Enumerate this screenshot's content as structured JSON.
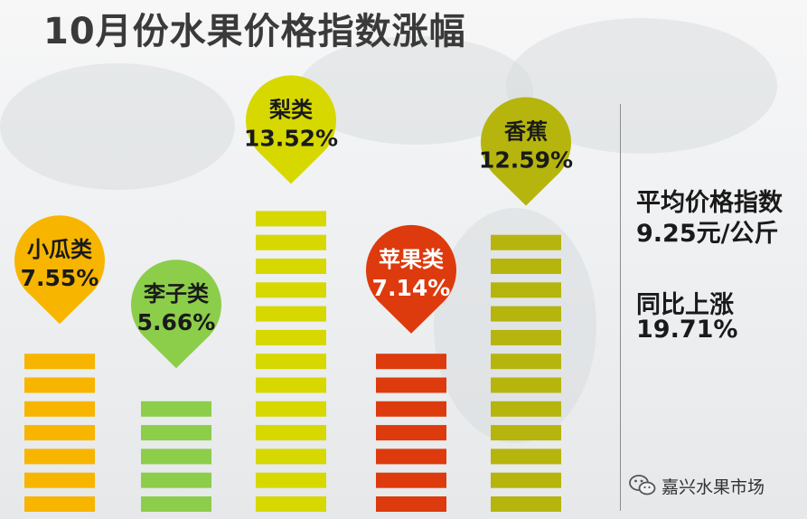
{
  "title": "10月份水果价格指数涨幅",
  "chart_data": {
    "type": "bar",
    "categories": [
      "小瓜类",
      "李子类",
      "梨类",
      "苹果类",
      "香蕉"
    ],
    "values": [
      7.55,
      5.66,
      13.52,
      7.14,
      12.59
    ],
    "value_labels": [
      "7.55%",
      "5.66%",
      "13.52%",
      "7.14%",
      "12.59%"
    ],
    "colors": [
      "#f7b500",
      "#8ccd4a",
      "#d6d800",
      "#dd3a0e",
      "#b5b50e"
    ],
    "ylim": [
      0,
      14.5
    ],
    "grid": false,
    "legend": "none"
  },
  "summary": {
    "line1": "平均价格指数",
    "line2": "9.25元/公斤",
    "line3": "同比上涨",
    "line4": "19.71%"
  },
  "watermark": {
    "text": "嘉兴水果市场",
    "icon": "wechat-icon"
  }
}
